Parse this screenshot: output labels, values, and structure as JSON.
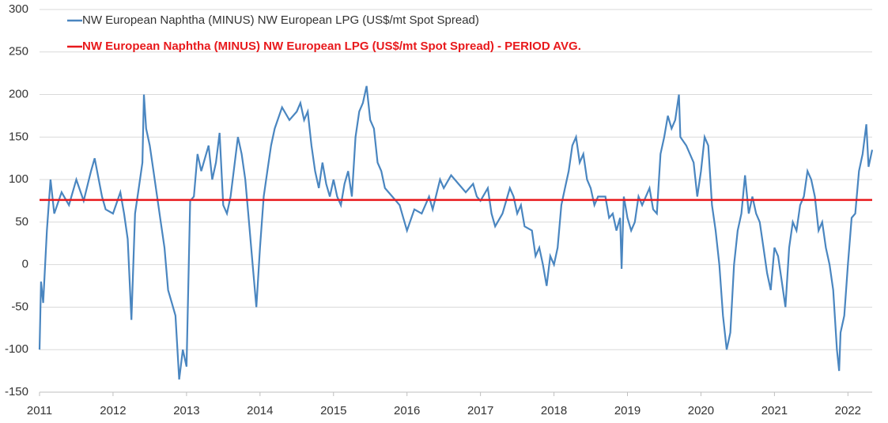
{
  "chart_data": {
    "type": "line",
    "series": [
      {
        "name": "NW European Naphtha (MINUS) NW European LPG (US$/mt Spot Spread)",
        "color": "#4a86c0",
        "x": [
          2011.0,
          2011.02,
          2011.05,
          2011.1,
          2011.15,
          2011.2,
          2011.3,
          2011.4,
          2011.5,
          2011.6,
          2011.7,
          2011.75,
          2011.85,
          2011.9,
          2012.0,
          2012.1,
          2012.15,
          2012.2,
          2012.25,
          2012.3,
          2012.35,
          2012.4,
          2012.42,
          2012.45,
          2012.5,
          2012.55,
          2012.6,
          2012.65,
          2012.7,
          2012.75,
          2012.8,
          2012.85,
          2012.9,
          2012.95,
          2013.0,
          2013.05,
          2013.1,
          2013.15,
          2013.2,
          2013.3,
          2013.35,
          2013.4,
          2013.45,
          2013.5,
          2013.55,
          2013.6,
          2013.7,
          2013.75,
          2013.8,
          2013.85,
          2013.9,
          2013.95,
          2014.0,
          2014.05,
          2014.1,
          2014.15,
          2014.2,
          2014.3,
          2014.4,
          2014.5,
          2014.55,
          2014.6,
          2014.65,
          2014.7,
          2014.75,
          2014.8,
          2014.85,
          2014.9,
          2014.95,
          2015.0,
          2015.05,
          2015.1,
          2015.15,
          2015.2,
          2015.25,
          2015.3,
          2015.35,
          2015.4,
          2015.45,
          2015.5,
          2015.55,
          2015.6,
          2015.65,
          2015.7,
          2015.8,
          2015.9,
          2015.95,
          2016.0,
          2016.1,
          2016.2,
          2016.3,
          2016.35,
          2016.45,
          2016.5,
          2016.6,
          2016.7,
          2016.8,
          2016.9,
          2016.95,
          2017.0,
          2017.1,
          2017.15,
          2017.2,
          2017.3,
          2017.4,
          2017.45,
          2017.5,
          2017.55,
          2017.6,
          2017.7,
          2017.75,
          2017.8,
          2017.85,
          2017.9,
          2017.95,
          2018.0,
          2018.05,
          2018.1,
          2018.15,
          2018.2,
          2018.25,
          2018.3,
          2018.35,
          2018.4,
          2018.45,
          2018.5,
          2018.55,
          2018.6,
          2018.7,
          2018.75,
          2018.8,
          2018.85,
          2018.9,
          2018.92,
          2018.95,
          2019.0,
          2019.05,
          2019.1,
          2019.15,
          2019.2,
          2019.3,
          2019.35,
          2019.4,
          2019.45,
          2019.5,
          2019.55,
          2019.6,
          2019.65,
          2019.7,
          2019.72,
          2019.8,
          2019.9,
          2019.95,
          2020.0,
          2020.05,
          2020.1,
          2020.15,
          2020.2,
          2020.25,
          2020.3,
          2020.35,
          2020.4,
          2020.45,
          2020.5,
          2020.55,
          2020.6,
          2020.65,
          2020.7,
          2020.75,
          2020.8,
          2020.85,
          2020.9,
          2020.95,
          2021.0,
          2021.05,
          2021.1,
          2021.15,
          2021.2,
          2021.25,
          2021.3,
          2021.35,
          2021.4,
          2021.45,
          2021.5,
          2021.55,
          2021.6,
          2021.65,
          2021.7,
          2021.75,
          2021.8,
          2021.85,
          2021.88,
          2021.9,
          2021.95,
          2022.0,
          2022.05,
          2022.1,
          2022.15,
          2022.2,
          2022.25,
          2022.28,
          2022.33
        ],
        "values": [
          -100,
          -20,
          -45,
          40,
          100,
          60,
          85,
          70,
          100,
          75,
          110,
          125,
          80,
          65,
          60,
          85,
          60,
          30,
          -65,
          60,
          90,
          120,
          200,
          160,
          140,
          110,
          80,
          50,
          20,
          -30,
          -45,
          -60,
          -135,
          -100,
          -120,
          75,
          80,
          130,
          110,
          140,
          100,
          120,
          155,
          70,
          60,
          80,
          150,
          130,
          100,
          50,
          0,
          -50,
          20,
          80,
          110,
          140,
          160,
          185,
          170,
          180,
          190,
          170,
          180,
          140,
          110,
          90,
          120,
          95,
          80,
          100,
          80,
          70,
          95,
          110,
          80,
          150,
          180,
          190,
          210,
          170,
          160,
          120,
          110,
          90,
          80,
          70,
          55,
          40,
          65,
          60,
          80,
          65,
          100,
          90,
          105,
          95,
          85,
          95,
          80,
          75,
          90,
          60,
          45,
          60,
          90,
          80,
          60,
          70,
          45,
          40,
          10,
          20,
          0,
          -25,
          10,
          0,
          20,
          70,
          90,
          110,
          140,
          150,
          120,
          130,
          100,
          90,
          70,
          80,
          80,
          55,
          60,
          40,
          55,
          -5,
          80,
          55,
          40,
          50,
          80,
          70,
          90,
          65,
          60,
          130,
          150,
          175,
          160,
          170,
          200,
          150,
          140,
          120,
          80,
          110,
          150,
          140,
          70,
          40,
          0,
          -60,
          -100,
          -80,
          0,
          40,
          60,
          105,
          60,
          80,
          60,
          50,
          20,
          -10,
          -30,
          20,
          10,
          -20,
          -50,
          20,
          50,
          40,
          70,
          80,
          110,
          100,
          80,
          40,
          50,
          20,
          0,
          -30,
          -100,
          -125,
          -80,
          -60,
          0,
          55,
          60,
          110,
          130,
          165,
          115,
          135
        ]
      },
      {
        "name": "NW European Naphtha (MINUS) NW European LPG (US$/mt Spot Spread) - PERIOD AVG.",
        "color": "#e8191c",
        "x": [
          2011.0,
          2022.33
        ],
        "values": [
          76,
          76
        ]
      }
    ],
    "xlim": [
      2011,
      2022.33
    ],
    "xticks": [
      2011,
      2012,
      2013,
      2014,
      2015,
      2016,
      2017,
      2018,
      2019,
      2020,
      2021,
      2022
    ],
    "ylim": [
      -150,
      300
    ],
    "yticks": [
      -150,
      -100,
      -50,
      0,
      50,
      100,
      150,
      200,
      250,
      300
    ],
    "grid": true,
    "legend": "top-left"
  }
}
